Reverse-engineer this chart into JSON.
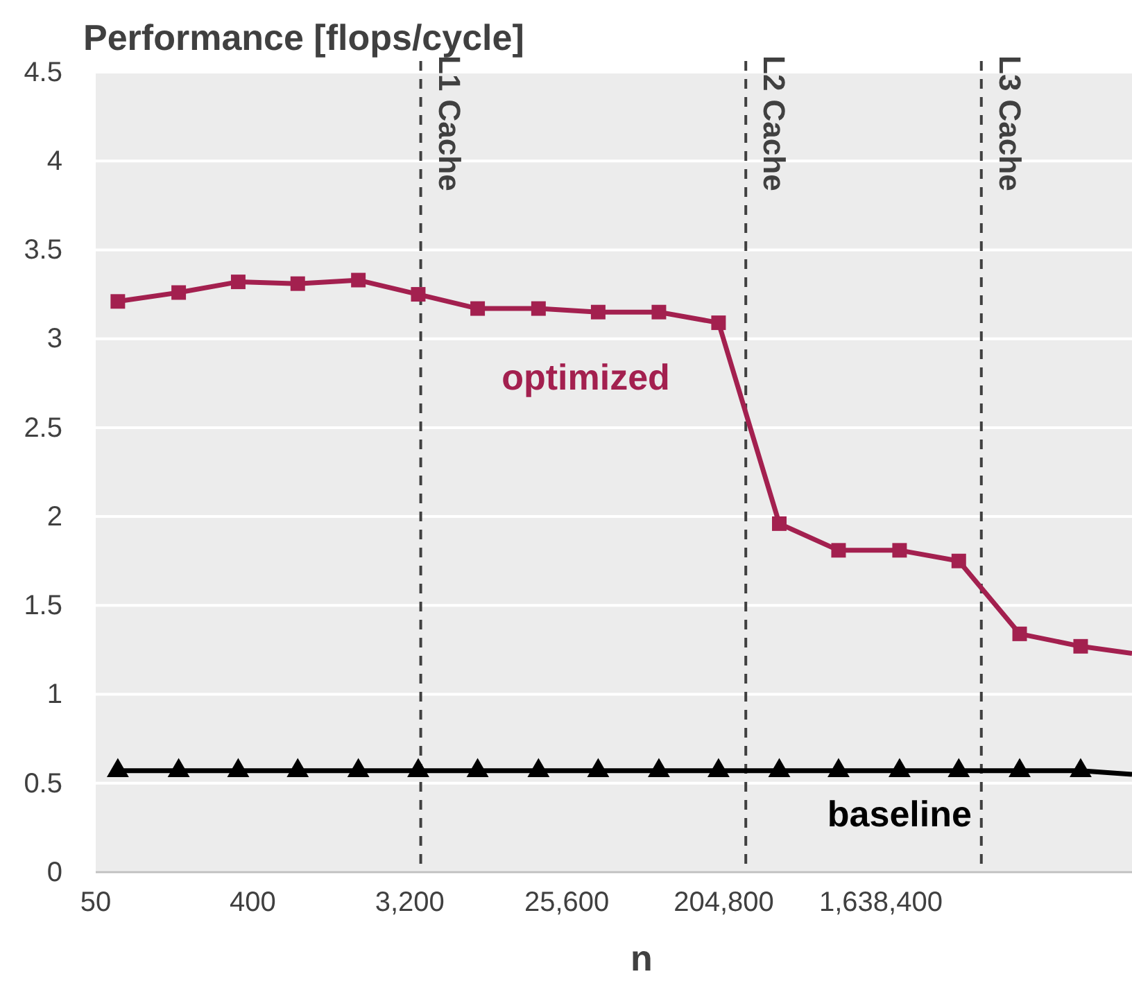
{
  "chart_data": {
    "type": "line",
    "title": "Performance [flops/cycle]",
    "xlabel": "n",
    "log": "x",
    "x": [
      67,
      150,
      330,
      726,
      1620,
      3580,
      7860,
      17600,
      38800,
      86700,
      191000,
      427000,
      936000,
      2100000,
      4600000,
      10300000,
      23100000,
      45600000
    ],
    "xlim": [
      50,
      45600000
    ],
    "xticks": [
      {
        "value": 50,
        "label": "50"
      },
      {
        "value": 400,
        "label": "400"
      },
      {
        "value": 3200,
        "label": "3,200"
      },
      {
        "value": 25600,
        "label": "25,600"
      },
      {
        "value": 204800,
        "label": "204,800"
      },
      {
        "value": 1638400,
        "label": "1,638,400"
      }
    ],
    "ylim": [
      0,
      4.5
    ],
    "yticks": [
      0,
      0.5,
      1,
      1.5,
      2,
      2.5,
      3,
      3.5,
      4,
      4.5
    ],
    "grid": "y",
    "series": [
      {
        "name": "optimized",
        "color": "#a3204f",
        "marker": "square",
        "values": [
          3.21,
          3.26,
          3.32,
          3.31,
          3.33,
          3.25,
          3.17,
          3.17,
          3.15,
          3.15,
          3.09,
          1.96,
          1.81,
          1.81,
          1.75,
          1.34,
          1.27,
          1.23
        ]
      },
      {
        "name": "baseline",
        "color": "#000000",
        "marker": "triangle",
        "values": [
          0.57,
          0.57,
          0.57,
          0.57,
          0.57,
          0.57,
          0.57,
          0.57,
          0.57,
          0.57,
          0.57,
          0.57,
          0.57,
          0.57,
          0.57,
          0.57,
          0.57,
          0.55
        ]
      }
    ],
    "ref_lines": [
      {
        "axis": "x",
        "value": 3700,
        "label": "L1 Cache",
        "line_style": "dashed",
        "color": "#404040"
      },
      {
        "axis": "x",
        "value": 274000,
        "label": "L2 Cache",
        "line_style": "dashed",
        "color": "#404040"
      },
      {
        "axis": "x",
        "value": 6200000,
        "label": "L3 Cache",
        "line_style": "dashed",
        "color": "#404040"
      }
    ]
  }
}
